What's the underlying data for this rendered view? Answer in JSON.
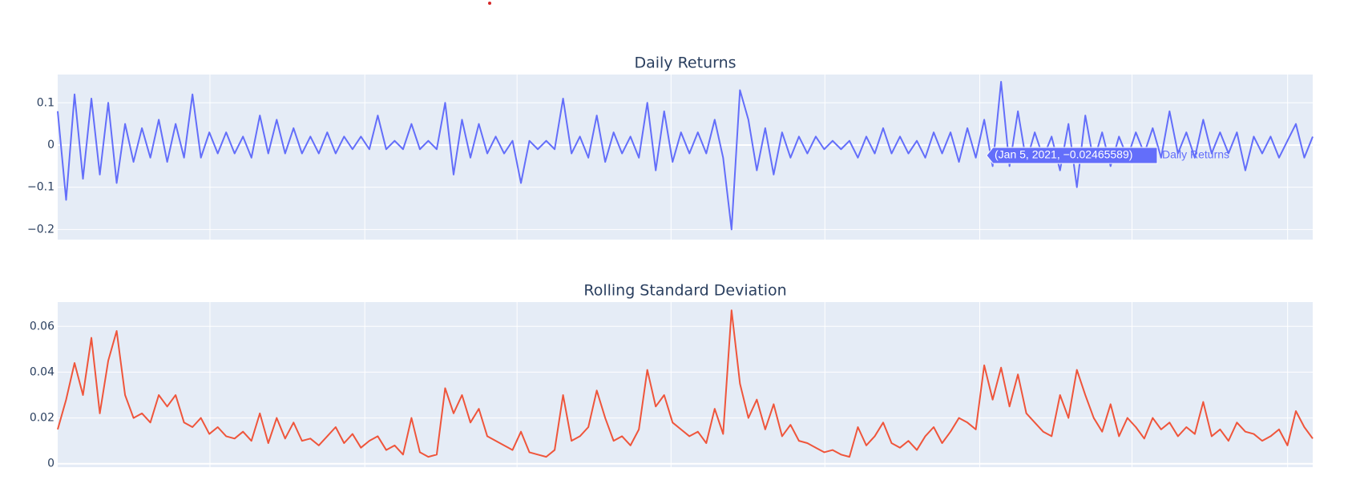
{
  "chart_data": [
    {
      "type": "line",
      "title": "Daily Returns",
      "series": [
        {
          "name": "Daily Returns",
          "color": "#636efa",
          "values": [
            0.08,
            -0.13,
            0.12,
            -0.08,
            0.11,
            -0.07,
            0.1,
            -0.09,
            0.05,
            -0.04,
            0.04,
            -0.03,
            0.06,
            -0.04,
            0.05,
            -0.03,
            0.12,
            -0.03,
            0.03,
            -0.02,
            0.03,
            -0.02,
            0.02,
            -0.03,
            0.07,
            -0.02,
            0.06,
            -0.02,
            0.04,
            -0.02,
            0.02,
            -0.02,
            0.03,
            -0.02,
            0.02,
            -0.01,
            0.02,
            -0.01,
            0.07,
            -0.01,
            0.01,
            -0.01,
            0.05,
            -0.01,
            0.01,
            -0.01,
            0.1,
            -0.07,
            0.06,
            -0.03,
            0.05,
            -0.02,
            0.02,
            -0.02,
            0.01,
            -0.09,
            0.01,
            -0.01,
            0.01,
            -0.01,
            0.11,
            -0.02,
            0.02,
            -0.03,
            0.07,
            -0.04,
            0.03,
            -0.02,
            0.02,
            -0.03,
            0.1,
            -0.06,
            0.08,
            -0.04,
            0.03,
            -0.02,
            0.03,
            -0.02,
            0.06,
            -0.03,
            -0.2,
            0.13,
            0.06,
            -0.06,
            0.04,
            -0.07,
            0.03,
            -0.03,
            0.02,
            -0.02,
            0.02,
            -0.01,
            0.01,
            -0.01,
            0.01,
            -0.03,
            0.02,
            -0.02,
            0.04,
            -0.02,
            0.02,
            -0.02,
            0.01,
            -0.03,
            0.03,
            -0.02,
            0.03,
            -0.04,
            0.04,
            -0.03,
            0.06,
            -0.05,
            0.15,
            -0.05,
            0.08,
            -0.04,
            0.03,
            -0.03,
            0.02,
            -0.06,
            0.05,
            -0.1,
            0.07,
            -0.04,
            0.03,
            -0.05,
            0.02,
            -0.03,
            0.03,
            -0.02,
            0.04,
            -0.03,
            0.08,
            -0.02,
            0.03,
            -0.03,
            0.06,
            -0.02,
            0.03,
            -0.02,
            0.03,
            -0.06,
            0.02,
            -0.02,
            0.02,
            -0.03,
            0.01,
            0.05,
            -0.03,
            0.02
          ]
        }
      ],
      "ylim": [
        -0.224,
        0.167
      ],
      "yticks": [
        {
          "value": -0.2,
          "label": "−0.2"
        },
        {
          "value": -0.1,
          "label": "−0.1"
        },
        0,
        0.1
      ],
      "grid": true,
      "hover_text": "(Jan 5, 2021, −0.02465589)"
    },
    {
      "type": "line",
      "title": "Rolling Standard Deviation",
      "series": [
        {
          "color": "#ef553b",
          "values": [
            0.015,
            0.028,
            0.044,
            0.03,
            0.055,
            0.022,
            0.045,
            0.058,
            0.03,
            0.02,
            0.022,
            0.018,
            0.03,
            0.025,
            0.03,
            0.018,
            0.016,
            0.02,
            0.013,
            0.016,
            0.012,
            0.011,
            0.014,
            0.01,
            0.022,
            0.009,
            0.02,
            0.011,
            0.018,
            0.01,
            0.011,
            0.008,
            0.012,
            0.016,
            0.009,
            0.013,
            0.007,
            0.01,
            0.012,
            0.006,
            0.008,
            0.004,
            0.02,
            0.005,
            0.003,
            0.004,
            0.033,
            0.022,
            0.03,
            0.018,
            0.024,
            0.012,
            0.01,
            0.008,
            0.006,
            0.014,
            0.005,
            0.004,
            0.003,
            0.006,
            0.03,
            0.01,
            0.012,
            0.016,
            0.032,
            0.02,
            0.01,
            0.012,
            0.008,
            0.015,
            0.041,
            0.025,
            0.03,
            0.018,
            0.015,
            0.012,
            0.014,
            0.009,
            0.024,
            0.013,
            0.067,
            0.035,
            0.02,
            0.028,
            0.015,
            0.026,
            0.012,
            0.017,
            0.01,
            0.009,
            0.007,
            0.005,
            0.006,
            0.004,
            0.003,
            0.016,
            0.008,
            0.012,
            0.018,
            0.009,
            0.007,
            0.01,
            0.006,
            0.012,
            0.016,
            0.009,
            0.014,
            0.02,
            0.018,
            0.015,
            0.043,
            0.028,
            0.042,
            0.025,
            0.039,
            0.022,
            0.018,
            0.014,
            0.012,
            0.03,
            0.02,
            0.041,
            0.03,
            0.02,
            0.014,
            0.026,
            0.012,
            0.02,
            0.016,
            0.011,
            0.02,
            0.015,
            0.018,
            0.012,
            0.016,
            0.013,
            0.027,
            0.012,
            0.015,
            0.01,
            0.018,
            0.014,
            0.013,
            0.01,
            0.012,
            0.015,
            0.008,
            0.023,
            0.016,
            0.011
          ]
        }
      ],
      "ylim": [
        -0.0015,
        0.0706
      ],
      "yticks": [
        0,
        0.02,
        0.04,
        0.06
      ],
      "grid": true
    }
  ]
}
